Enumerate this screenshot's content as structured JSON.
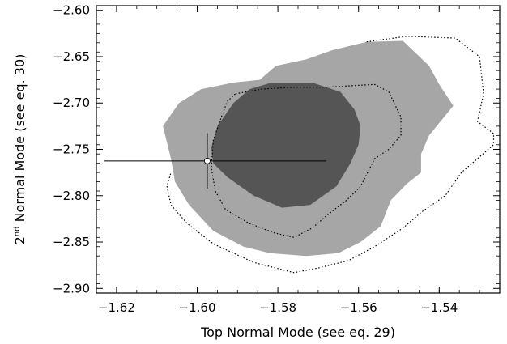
{
  "chart_data": {
    "type": "contour",
    "xlabel": "Top Normal Mode (see eq. 29)",
    "ylabel_prefix": "2",
    "ylabel_superscript": "nd",
    "ylabel_suffix": " Normal Mode (see eq. 30)",
    "xlim": [
      -1.625,
      -1.525
    ],
    "ylim": [
      -2.905,
      -2.595
    ],
    "xticks": [
      -1.62,
      -1.6,
      -1.58,
      -1.56,
      -1.54
    ],
    "xtick_labels": [
      "−1.62",
      "−1.60",
      "−1.58",
      "−1.56",
      "−1.54"
    ],
    "yticks": [
      -2.6,
      -2.65,
      -2.7,
      -2.75,
      -2.8,
      -2.85,
      -2.9
    ],
    "ytick_labels": [
      "−2.60",
      "−2.65",
      "−2.70",
      "−2.75",
      "−2.80",
      "−2.85",
      "−2.90"
    ],
    "regions": [
      {
        "name": "outer-light",
        "color": "#a6a6a6",
        "points": [
          [
            -1.5845,
            -2.675
          ],
          [
            -1.5805,
            -2.66
          ],
          [
            -1.573,
            -2.653
          ],
          [
            -1.5665,
            -2.643
          ],
          [
            -1.558,
            -2.634
          ],
          [
            -1.549,
            -2.633
          ],
          [
            -1.5425,
            -2.66
          ],
          [
            -1.54,
            -2.68
          ],
          [
            -1.5365,
            -2.703
          ],
          [
            -1.5425,
            -2.735
          ],
          [
            -1.5445,
            -2.755
          ],
          [
            -1.5445,
            -2.775
          ],
          [
            -1.548,
            -2.787
          ],
          [
            -1.552,
            -2.805
          ],
          [
            -1.5545,
            -2.833
          ],
          [
            -1.5595,
            -2.85
          ],
          [
            -1.565,
            -2.862
          ],
          [
            -1.573,
            -2.865
          ],
          [
            -1.582,
            -2.862
          ],
          [
            -1.5885,
            -2.855
          ],
          [
            -1.596,
            -2.838
          ],
          [
            -1.602,
            -2.81
          ],
          [
            -1.6055,
            -2.785
          ],
          [
            -1.6065,
            -2.76
          ],
          [
            -1.6085,
            -2.725
          ],
          [
            -1.6045,
            -2.7
          ],
          [
            -1.599,
            -2.685
          ],
          [
            -1.591,
            -2.678
          ]
        ]
      },
      {
        "name": "inner-dark",
        "color": "#555555",
        "points": [
          [
            -1.5815,
            -2.678
          ],
          [
            -1.5715,
            -2.678
          ],
          [
            -1.5645,
            -2.688
          ],
          [
            -1.561,
            -2.707
          ],
          [
            -1.5595,
            -2.725
          ],
          [
            -1.56,
            -2.745
          ],
          [
            -1.562,
            -2.765
          ],
          [
            -1.5655,
            -2.79
          ],
          [
            -1.572,
            -2.81
          ],
          [
            -1.579,
            -2.813
          ],
          [
            -1.586,
            -2.8
          ],
          [
            -1.5925,
            -2.78
          ],
          [
            -1.596,
            -2.765
          ],
          [
            -1.5965,
            -2.748
          ],
          [
            -1.595,
            -2.725
          ],
          [
            -1.591,
            -2.7
          ],
          [
            -1.587,
            -2.685
          ]
        ]
      }
    ],
    "dotted_contours": [
      {
        "name": "inner-dotted",
        "points": [
          [
            -1.5905,
            -2.69
          ],
          [
            -1.584,
            -2.685
          ],
          [
            -1.576,
            -2.683
          ],
          [
            -1.568,
            -2.683
          ],
          [
            -1.5605,
            -2.681
          ],
          [
            -1.556,
            -2.68
          ],
          [
            -1.5525,
            -2.688
          ],
          [
            -1.5495,
            -2.715
          ],
          [
            -1.5495,
            -2.735
          ],
          [
            -1.5525,
            -2.75
          ],
          [
            -1.556,
            -2.76
          ],
          [
            -1.5595,
            -2.79
          ],
          [
            -1.563,
            -2.805
          ],
          [
            -1.5675,
            -2.82
          ],
          [
            -1.5715,
            -2.835
          ],
          [
            -1.576,
            -2.845
          ],
          [
            -1.581,
            -2.84
          ],
          [
            -1.587,
            -2.83
          ],
          [
            -1.593,
            -2.815
          ],
          [
            -1.5955,
            -2.795
          ],
          [
            -1.5965,
            -2.77
          ],
          [
            -1.596,
            -2.74
          ],
          [
            -1.594,
            -2.715
          ],
          [
            -1.5925,
            -2.698
          ]
        ],
        "closed": true
      },
      {
        "name": "outer-dotted",
        "points": [
          [
            -1.558,
            -2.634
          ],
          [
            -1.548,
            -2.628
          ],
          [
            -1.536,
            -2.63
          ],
          [
            -1.53,
            -2.65
          ],
          [
            -1.529,
            -2.69
          ],
          [
            -1.5305,
            -2.72
          ],
          [
            -1.5265,
            -2.733
          ],
          [
            -1.5265,
            -2.745
          ],
          [
            -1.5305,
            -2.76
          ],
          [
            -1.5345,
            -2.775
          ],
          [
            -1.5385,
            -2.8
          ],
          [
            -1.5445,
            -2.818
          ],
          [
            -1.549,
            -2.835
          ],
          [
            -1.556,
            -2.855
          ],
          [
            -1.5625,
            -2.87
          ],
          [
            -1.57,
            -2.878
          ],
          [
            -1.576,
            -2.883
          ],
          [
            -1.586,
            -2.872
          ],
          [
            -1.596,
            -2.852
          ],
          [
            -1.6025,
            -2.83
          ],
          [
            -1.6065,
            -2.81
          ],
          [
            -1.6075,
            -2.79
          ],
          [
            -1.6065,
            -2.775
          ]
        ],
        "closed": false
      }
    ],
    "point": {
      "x": -1.5975,
      "y": -2.7625,
      "xerr_left": 0.0255,
      "xerr_right": 0.0295,
      "yerr": 0.03
    }
  }
}
